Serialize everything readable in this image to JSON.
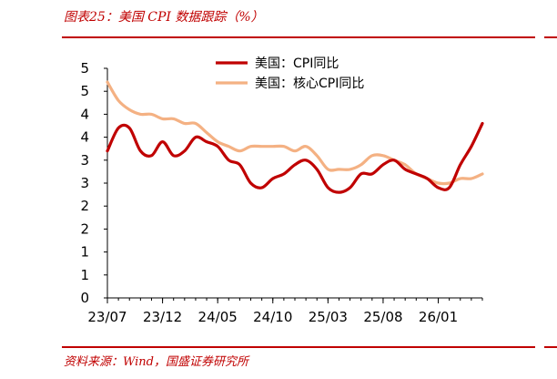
{
  "figure": {
    "title": "图表25：美国 CPI 数据跟踪（%）",
    "source": "资料来源：Wind，国盛证券研究所"
  },
  "colors": {
    "accent": "#c00000",
    "series_cpi": "#c00000",
    "series_core": "#f4b183",
    "axis": "#000000"
  },
  "chart_data": {
    "type": "line",
    "title": "",
    "xlabel": "",
    "ylabel": "",
    "ylim": [
      0,
      5
    ],
    "y_ticks": [
      0,
      0.5,
      1,
      1.5,
      2,
      2.5,
      3,
      3.5,
      4,
      4.5,
      5
    ],
    "y_tick_labels": [
      "0",
      "1",
      "1",
      "2",
      "2",
      "3",
      "3",
      "4",
      "4",
      "5",
      "5"
    ],
    "x_tick_labels": [
      "23/07",
      "23/12",
      "24/05",
      "24/10",
      "25/03",
      "25/08",
      "26/01"
    ],
    "x_tick_index": [
      0,
      5,
      10,
      15,
      20,
      25,
      30
    ],
    "grid": false,
    "legend": "top-center",
    "x": [
      "23/07",
      "23/08",
      "23/09",
      "23/10",
      "23/11",
      "23/12",
      "24/01",
      "24/02",
      "24/03",
      "24/04",
      "24/05",
      "24/06",
      "24/07",
      "24/08",
      "24/09",
      "24/10",
      "24/11",
      "24/12",
      "25/01",
      "25/02",
      "25/03",
      "25/04",
      "25/05",
      "25/06",
      "25/07",
      "25/08",
      "25/09",
      "25/10",
      "25/11",
      "25/12",
      "26/01",
      "26/02",
      "26/03",
      "26/04",
      "26/05"
    ],
    "series": [
      {
        "name": "美国：CPI同比",
        "values": [
          3.2,
          3.7,
          3.7,
          3.2,
          3.1,
          3.4,
          3.1,
          3.2,
          3.5,
          3.4,
          3.3,
          3.0,
          2.9,
          2.5,
          2.4,
          2.6,
          2.7,
          2.9,
          3.0,
          2.8,
          2.4,
          2.3,
          2.4,
          2.7,
          2.7,
          2.9,
          3.0,
          2.8,
          2.7,
          2.6,
          2.4,
          2.4,
          2.9,
          3.3,
          3.8
        ]
      },
      {
        "name": "美国：核心CPI同比",
        "values": [
          4.7,
          4.3,
          4.1,
          4.0,
          4.0,
          3.9,
          3.9,
          3.8,
          3.8,
          3.6,
          3.4,
          3.3,
          3.2,
          3.3,
          3.3,
          3.3,
          3.3,
          3.2,
          3.3,
          3.1,
          2.8,
          2.8,
          2.8,
          2.9,
          3.1,
          3.1,
          3.0,
          2.9,
          2.7,
          2.6,
          2.5,
          2.5,
          2.6,
          2.6,
          2.7
        ]
      }
    ]
  }
}
